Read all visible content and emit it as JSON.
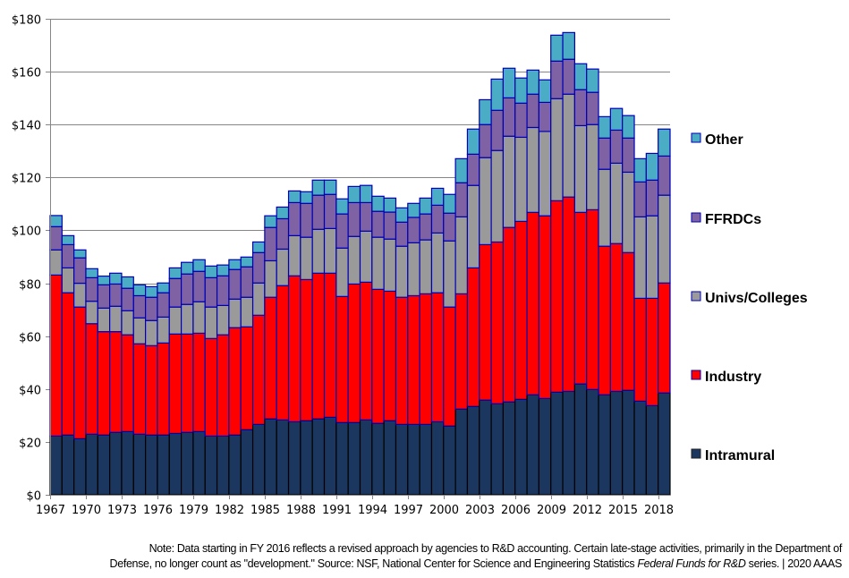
{
  "chart_data": {
    "type": "bar",
    "stacked": true,
    "title": "",
    "xlabel": "",
    "ylabel": "",
    "ylim": [
      0,
      180
    ],
    "y_ticks": [
      0,
      20,
      40,
      60,
      80,
      100,
      120,
      140,
      160,
      180
    ],
    "y_tick_labels": [
      "$0",
      "$20",
      "$40",
      "$60",
      "$80",
      "$100",
      "$120",
      "$140",
      "$160",
      "$180"
    ],
    "x_tick_labels": [
      "1967",
      "1970",
      "1973",
      "1976",
      "1979",
      "1982",
      "1985",
      "1988",
      "1991",
      "1994",
      "1997",
      "2000",
      "2003",
      "2006",
      "2009",
      "2012",
      "2015",
      "2018"
    ],
    "grid": "horizontal",
    "legend_position": "right",
    "categories": [
      1967,
      1968,
      1969,
      1970,
      1971,
      1972,
      1973,
      1974,
      1975,
      1976,
      1977,
      1978,
      1979,
      1980,
      1981,
      1982,
      1983,
      1984,
      1985,
      1986,
      1987,
      1988,
      1989,
      1990,
      1991,
      1992,
      1993,
      1994,
      1995,
      1996,
      1997,
      1998,
      1999,
      2000,
      2001,
      2002,
      2003,
      2004,
      2005,
      2006,
      2007,
      2008,
      2009,
      2010,
      2011,
      2012,
      2013,
      2014,
      2015,
      2016,
      2017,
      2018
    ],
    "series": [
      {
        "name": "Intramural",
        "color": "#1b3760",
        "values": [
          22.2,
          22.6,
          21.2,
          22.9,
          22.6,
          23.6,
          23.9,
          22.9,
          22.6,
          22.6,
          23.2,
          23.6,
          23.9,
          22.2,
          22.2,
          22.6,
          24.6,
          26.6,
          28.7,
          28.3,
          27.6,
          28.0,
          28.7,
          29.3,
          27.3,
          27.3,
          28.3,
          27.0,
          28.0,
          26.6,
          26.6,
          26.6,
          27.6,
          26.0,
          32.4,
          33.4,
          35.8,
          34.4,
          35.1,
          36.1,
          37.8,
          36.4,
          38.8,
          39.1,
          41.9,
          39.8,
          37.8,
          39.1,
          39.5,
          35.4,
          33.7,
          38.5
        ]
      },
      {
        "name": "Industry",
        "color": "#ff0000",
        "values": [
          60.9,
          53.8,
          49.8,
          41.8,
          39.1,
          38.1,
          36.6,
          34.2,
          33.8,
          34.8,
          37.6,
          37.2,
          37.2,
          36.9,
          38.3,
          40.6,
          38.9,
          41.3,
          46.0,
          50.8,
          55.2,
          53.4,
          55.1,
          54.5,
          47.7,
          52.4,
          52.1,
          50.7,
          49.0,
          48.1,
          48.7,
          49.4,
          48.8,
          45.0,
          43.6,
          52.4,
          58.8,
          61.2,
          66.0,
          67.3,
          69.0,
          69.1,
          72.4,
          73.5,
          64.9,
          68.0,
          56.2,
          55.9,
          52.1,
          38.9,
          40.6,
          41.6
        ]
      },
      {
        "name": "Univs/Colleges",
        "color": "#9a9a9a",
        "values": [
          9.5,
          9.4,
          9.0,
          8.5,
          8.9,
          9.6,
          9.1,
          9.8,
          9.5,
          9.8,
          10.2,
          11.2,
          11.9,
          11.9,
          11.1,
          10.8,
          11.2,
          12.2,
          13.8,
          13.8,
          15.2,
          16.0,
          16.6,
          16.9,
          18.3,
          18.0,
          19.3,
          19.7,
          19.7,
          19.3,
          20.0,
          20.4,
          22.6,
          25.0,
          29.1,
          31.2,
          32.9,
          34.6,
          34.5,
          31.8,
          32.1,
          31.9,
          38.6,
          38.9,
          32.8,
          32.2,
          29.1,
          30.4,
          30.4,
          30.8,
          31.2,
          33.2
        ]
      },
      {
        "name": "FFRDCs",
        "color": "#7e62a3",
        "values": [
          8.8,
          8.8,
          9.6,
          8.9,
          8.8,
          8.4,
          8.5,
          8.4,
          8.8,
          9.2,
          10.8,
          11.5,
          11.5,
          11.1,
          11.2,
          11.2,
          11.5,
          11.5,
          12.6,
          11.5,
          12.5,
          12.8,
          12.9,
          12.9,
          12.9,
          12.8,
          10.8,
          9.8,
          10.2,
          9.1,
          9.6,
          9.8,
          10.5,
          10.5,
          12.9,
          11.8,
          12.5,
          15.2,
          14.5,
          12.9,
          12.6,
          11.0,
          14.2,
          13.2,
          13.6,
          12.2,
          11.8,
          12.5,
          12.9,
          13.2,
          13.5,
          14.8
        ]
      },
      {
        "name": "Other",
        "color": "#4bacc6",
        "values": [
          4.2,
          3.4,
          3.0,
          3.4,
          3.3,
          4.1,
          4.3,
          4.1,
          4.0,
          3.7,
          4.0,
          4.4,
          4.4,
          4.4,
          4.1,
          3.7,
          3.7,
          4.0,
          4.4,
          4.4,
          4.4,
          4.4,
          5.7,
          5.4,
          5.7,
          6.1,
          6.5,
          5.7,
          5.3,
          5.4,
          5.3,
          6.0,
          6.4,
          7.1,
          9.1,
          9.5,
          9.4,
          11.8,
          11.2,
          9.5,
          9.1,
          8.5,
          9.8,
          10.1,
          9.8,
          8.8,
          8.1,
          8.2,
          8.5,
          8.8,
          10.1,
          10.2
        ]
      }
    ],
    "legend": [
      "Other",
      "FFRDCs",
      "Univs/Colleges",
      "Industry",
      "Intramural"
    ],
    "bar_outline_color": "#0000b3"
  },
  "note": {
    "line1": "Note: Data starting in FY 2016  reflects a revised approach by agencies to R&D accounting. Certain late-stage activities, primarily in the Department of",
    "line2_pre": "Defense, no longer count as \"development.\" Source: NSF, National Center for Science and Engineering Statistics ",
    "line2_italic": "Federal Funds for R&D",
    "line2_post": " series. | 2020 AAAS"
  }
}
